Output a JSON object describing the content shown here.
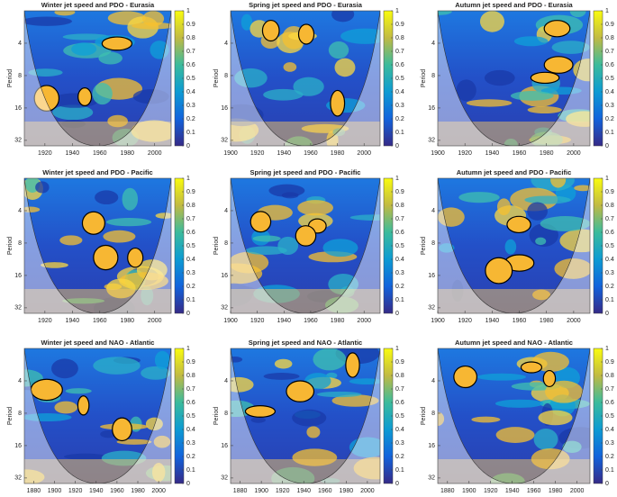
{
  "chart_data": [
    {
      "type": "wavelet-coherence",
      "title": "Winter jet speed and PDO - Eurasia",
      "ylabel": "Period",
      "xlim": [
        1905,
        2012
      ],
      "xticks": [
        1920,
        1940,
        1960,
        1980,
        2000
      ],
      "ylim": [
        2,
        36
      ],
      "yticks": [
        4,
        8,
        16,
        32
      ],
      "log_y": true,
      "clim": [
        0,
        1
      ],
      "cticks": [
        0,
        0.1,
        0.2,
        0.3,
        0.4,
        0.5,
        0.6,
        0.7,
        0.8,
        0.9,
        1
      ]
    },
    {
      "type": "wavelet-coherence",
      "title": "Spring jet speed and PDO - Eurasia",
      "ylabel": "Period",
      "xlim": [
        1900,
        2012
      ],
      "xticks": [
        1900,
        1920,
        1940,
        1960,
        1980,
        2000
      ],
      "ylim": [
        2,
        36
      ],
      "yticks": [
        4,
        8,
        16,
        32
      ],
      "log_y": true,
      "clim": [
        0,
        1
      ],
      "cticks": [
        0,
        0.1,
        0.2,
        0.3,
        0.4,
        0.5,
        0.6,
        0.7,
        0.8,
        0.9,
        1
      ]
    },
    {
      "type": "wavelet-coherence",
      "title": "Autumn jet speed and PDO - Eurasia",
      "ylabel": "Period",
      "xlim": [
        1900,
        2012
      ],
      "xticks": [
        1900,
        1920,
        1940,
        1960,
        1980,
        2000
      ],
      "ylim": [
        2,
        36
      ],
      "yticks": [
        4,
        8,
        16,
        32
      ],
      "log_y": true,
      "clim": [
        0,
        1
      ],
      "cticks": [
        0,
        0.1,
        0.2,
        0.3,
        0.4,
        0.5,
        0.6,
        0.7,
        0.8,
        0.9,
        1
      ]
    },
    {
      "type": "wavelet-coherence",
      "title": "Winter jet speed and PDO - Pacific",
      "ylabel": "Period",
      "xlim": [
        1905,
        2012
      ],
      "xticks": [
        1920,
        1940,
        1960,
        1980,
        2000
      ],
      "ylim": [
        2,
        36
      ],
      "yticks": [
        4,
        8,
        16,
        32
      ],
      "log_y": true,
      "clim": [
        0,
        1
      ],
      "cticks": [
        0,
        0.1,
        0.2,
        0.3,
        0.4,
        0.5,
        0.6,
        0.7,
        0.8,
        0.9,
        1
      ]
    },
    {
      "type": "wavelet-coherence",
      "title": "Spring jet speed and PDO - Pacific",
      "ylabel": "Period",
      "xlim": [
        1900,
        2012
      ],
      "xticks": [
        1900,
        1920,
        1940,
        1960,
        1980,
        2000
      ],
      "ylim": [
        2,
        36
      ],
      "yticks": [
        4,
        8,
        16,
        32
      ],
      "log_y": true,
      "clim": [
        0,
        1
      ],
      "cticks": [
        0,
        0.1,
        0.2,
        0.3,
        0.4,
        0.5,
        0.6,
        0.7,
        0.8,
        0.9,
        1
      ]
    },
    {
      "type": "wavelet-coherence",
      "title": "Autumn jet speed and PDO - Pacific",
      "ylabel": "Period",
      "xlim": [
        1900,
        2012
      ],
      "xticks": [
        1900,
        1920,
        1940,
        1960,
        1980,
        2000
      ],
      "ylim": [
        2,
        36
      ],
      "yticks": [
        4,
        8,
        16,
        32
      ],
      "log_y": true,
      "clim": [
        0,
        1
      ],
      "cticks": [
        0,
        0.1,
        0.2,
        0.3,
        0.4,
        0.5,
        0.6,
        0.7,
        0.8,
        0.9,
        1
      ]
    },
    {
      "type": "wavelet-coherence",
      "title": "Winter jet speed and NAO - Atlantic",
      "ylabel": "Period",
      "xlim": [
        1871,
        2012
      ],
      "xticks": [
        1880,
        1900,
        1920,
        1940,
        1960,
        1980,
        2000
      ],
      "ylim": [
        2,
        36
      ],
      "yticks": [
        4,
        8,
        16,
        32
      ],
      "log_y": true,
      "clim": [
        0,
        1
      ],
      "cticks": [
        0,
        0.1,
        0.2,
        0.3,
        0.4,
        0.5,
        0.6,
        0.7,
        0.8,
        0.9,
        1
      ]
    },
    {
      "type": "wavelet-coherence",
      "title": "Spring jet speed and NAO - Atlantic",
      "ylabel": "Period",
      "xlim": [
        1871,
        2012
      ],
      "xticks": [
        1880,
        1900,
        1920,
        1940,
        1960,
        1980,
        2000
      ],
      "ylim": [
        2,
        36
      ],
      "yticks": [
        4,
        8,
        16,
        32
      ],
      "log_y": true,
      "clim": [
        0,
        1
      ],
      "cticks": [
        0,
        0.1,
        0.2,
        0.3,
        0.4,
        0.5,
        0.6,
        0.7,
        0.8,
        0.9,
        1
      ]
    },
    {
      "type": "wavelet-coherence",
      "title": "Autumn jet speed and NAO - Atlantic",
      "ylabel": "Period",
      "xlim": [
        1871,
        2012
      ],
      "xticks": [
        1880,
        1900,
        1920,
        1940,
        1960,
        1980,
        2000
      ],
      "ylim": [
        2,
        36
      ],
      "yticks": [
        4,
        8,
        16,
        32
      ],
      "log_y": true,
      "clim": [
        0,
        1
      ],
      "cticks": [
        0,
        0.1,
        0.2,
        0.3,
        0.4,
        0.5,
        0.6,
        0.7,
        0.8,
        0.9,
        1
      ]
    }
  ]
}
